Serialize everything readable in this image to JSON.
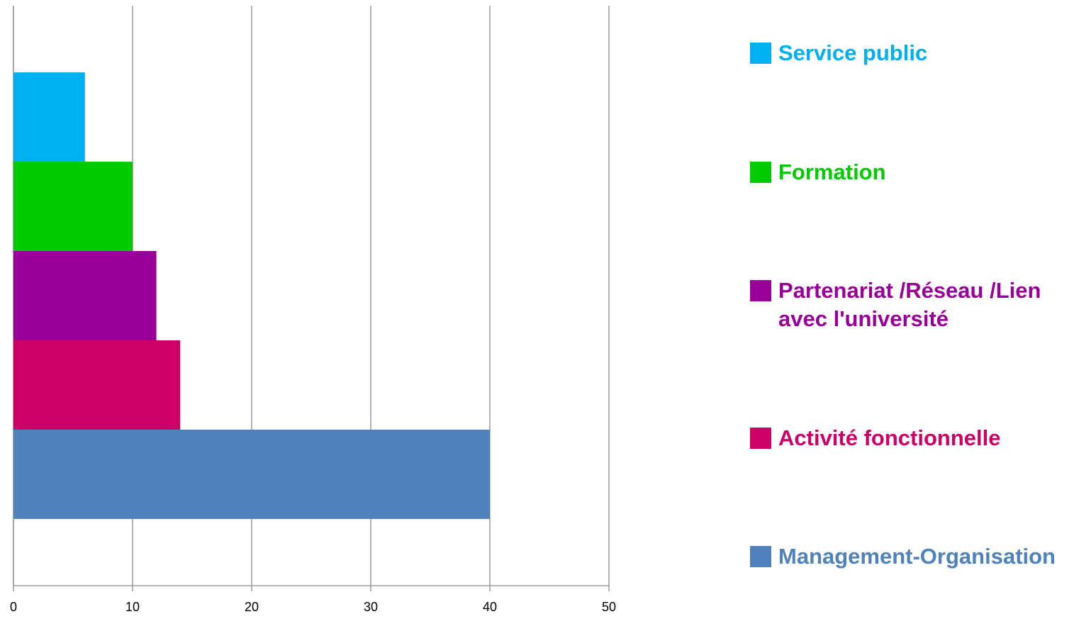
{
  "chart_data": {
    "type": "bar",
    "orientation": "horizontal",
    "categories": [
      null
    ],
    "series": [
      {
        "name": "Service public",
        "color": "#00b0f0",
        "values": [
          6
        ]
      },
      {
        "name": "Formation",
        "color": "#00cc00",
        "values": [
          10
        ]
      },
      {
        "name": "Partenariat /Réseau /Lien avec l'université",
        "color": "#990099",
        "values": [
          12
        ]
      },
      {
        "name": "Activité fonctionnelle",
        "color": "#cc0066",
        "values": [
          14
        ]
      },
      {
        "name": "Management-Organisation",
        "color": "#4f81bd",
        "values": [
          40
        ]
      }
    ],
    "xlim": [
      0,
      50
    ],
    "xticks": [
      0,
      10,
      20,
      30,
      40,
      50
    ],
    "grid": true,
    "legend": "right"
  }
}
